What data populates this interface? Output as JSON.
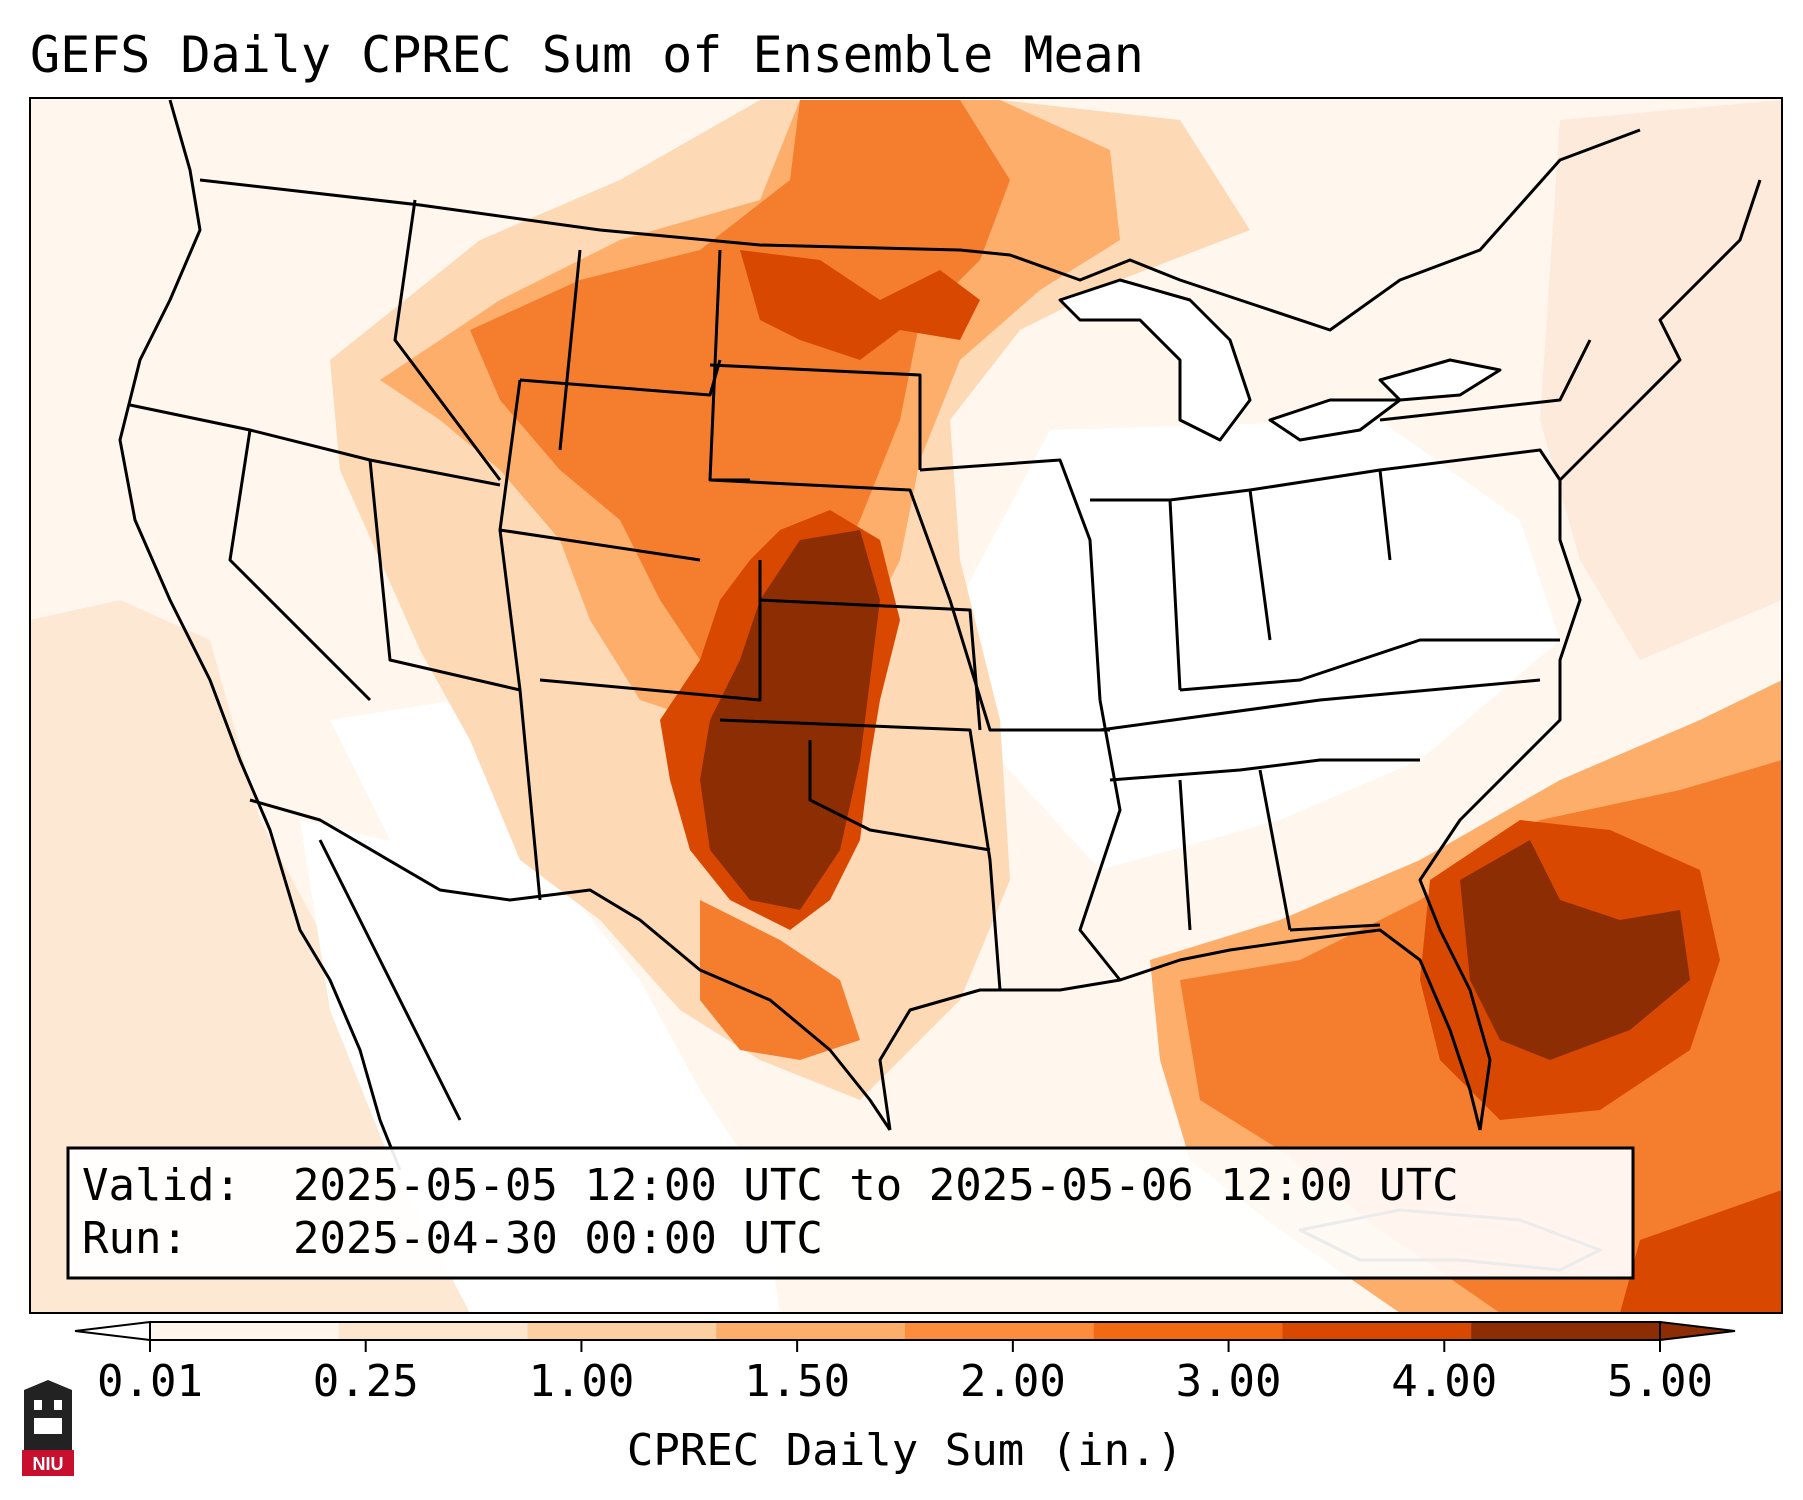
{
  "title": "GEFS Daily CPREC Sum of Ensemble Mean",
  "info": {
    "valid_label": "Valid:",
    "valid_value": "2025-05-05 12:00 UTC to 2025-05-06 12:00 UTC",
    "run_label": "Run:",
    "run_value": "2025-04-30 00:00 UTC"
  },
  "colorbar": {
    "label": "CPREC Daily Sum (in.)",
    "ticks": [
      "0.01",
      "0.25",
      "1.00",
      "1.50",
      "2.00",
      "3.00",
      "4.00",
      "5.00"
    ],
    "colors": [
      "#fff5eb",
      "#fee6ce",
      "#fdd0a2",
      "#fdae6b",
      "#fd8d3c",
      "#f16913",
      "#d94801",
      "#8c2d04"
    ],
    "over_color": "#8c2d04",
    "under_color": "#ffffff"
  },
  "logo": {
    "text": "NIU"
  },
  "colors": {
    "ocean_pale": "#fdeadb",
    "land_white": "#ffffff",
    "boundary": "#000000"
  }
}
